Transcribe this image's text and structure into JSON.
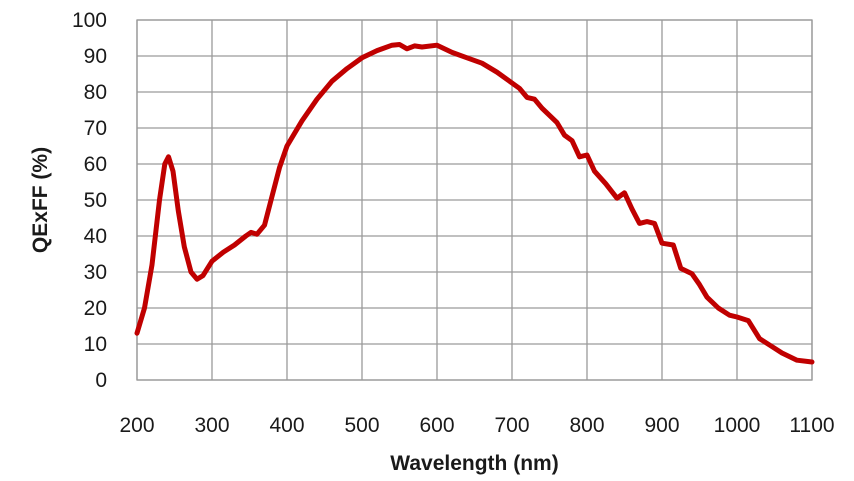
{
  "chart_data": {
    "type": "line",
    "title": "",
    "xlabel": "Wavelength (nm)",
    "ylabel": "QExFF (%)",
    "xlim": [
      200,
      1100
    ],
    "ylim": [
      0,
      100
    ],
    "x_ticks": [
      200,
      300,
      400,
      500,
      600,
      700,
      800,
      900,
      1000,
      1100
    ],
    "y_ticks": [
      0,
      10,
      20,
      30,
      40,
      50,
      60,
      70,
      80,
      90,
      100
    ],
    "grid": true,
    "legend": "none",
    "colors": {
      "line": "#c00000",
      "grid": "#9a9a9a"
    },
    "series": [
      {
        "points": [
          [
            200,
            13
          ],
          [
            210,
            20
          ],
          [
            220,
            32
          ],
          [
            230,
            50
          ],
          [
            237,
            60
          ],
          [
            242,
            62
          ],
          [
            248,
            58
          ],
          [
            255,
            47
          ],
          [
            263,
            37
          ],
          [
            272,
            30
          ],
          [
            280,
            28
          ],
          [
            288,
            29
          ],
          [
            300,
            33
          ],
          [
            315,
            35.5
          ],
          [
            330,
            37.5
          ],
          [
            345,
            40
          ],
          [
            352,
            41
          ],
          [
            360,
            40.5
          ],
          [
            370,
            43
          ],
          [
            380,
            51
          ],
          [
            390,
            59
          ],
          [
            400,
            65
          ],
          [
            420,
            72
          ],
          [
            440,
            78
          ],
          [
            460,
            83
          ],
          [
            480,
            86.5
          ],
          [
            500,
            89.5
          ],
          [
            520,
            91.5
          ],
          [
            540,
            93
          ],
          [
            550,
            93.2
          ],
          [
            560,
            92
          ],
          [
            570,
            92.8
          ],
          [
            580,
            92.5
          ],
          [
            600,
            93
          ],
          [
            620,
            91
          ],
          [
            640,
            89.5
          ],
          [
            660,
            88
          ],
          [
            680,
            85.5
          ],
          [
            700,
            82.5
          ],
          [
            710,
            81
          ],
          [
            720,
            78.5
          ],
          [
            730,
            78
          ],
          [
            740,
            75.5
          ],
          [
            760,
            71.5
          ],
          [
            770,
            68
          ],
          [
            780,
            66.5
          ],
          [
            790,
            62
          ],
          [
            800,
            62.5
          ],
          [
            810,
            58
          ],
          [
            825,
            54.5
          ],
          [
            840,
            50.5
          ],
          [
            850,
            52
          ],
          [
            860,
            47.5
          ],
          [
            870,
            43.5
          ],
          [
            880,
            44
          ],
          [
            890,
            43.5
          ],
          [
            900,
            38
          ],
          [
            915,
            37.5
          ],
          [
            925,
            31
          ],
          [
            940,
            29.5
          ],
          [
            950,
            26.5
          ],
          [
            960,
            23
          ],
          [
            975,
            20
          ],
          [
            990,
            18
          ],
          [
            1000,
            17.5
          ],
          [
            1015,
            16.5
          ],
          [
            1030,
            11.5
          ],
          [
            1045,
            9.5
          ],
          [
            1060,
            7.5
          ],
          [
            1080,
            5.5
          ],
          [
            1100,
            5
          ]
        ]
      }
    ]
  }
}
